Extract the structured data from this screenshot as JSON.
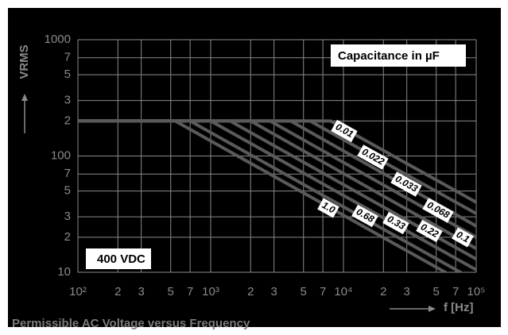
{
  "chart_data": {
    "type": "line",
    "title": "Permissible AC Voltage versus Frequency",
    "x_label": "f [Hz]",
    "y_label": "VRMS",
    "annotations": [
      "Capacitance in µF",
      "400 VDC"
    ],
    "log_x": true,
    "log_y": true,
    "grid": true,
    "xlim": [
      100,
      100000
    ],
    "ylim": [
      10,
      1000
    ],
    "xticks": [
      {
        "value": 100,
        "label": "10²"
      },
      {
        "value": 200,
        "label": "2"
      },
      {
        "value": 300,
        "label": "3"
      },
      {
        "value": 500,
        "label": "5"
      },
      {
        "value": 700,
        "label": "7"
      },
      {
        "value": 1000,
        "label": "10³"
      },
      {
        "value": 2000,
        "label": "2"
      },
      {
        "value": 3000,
        "label": "3"
      },
      {
        "value": 5000,
        "label": "5"
      },
      {
        "value": 7000,
        "label": "7"
      },
      {
        "value": 10000,
        "label": "10⁴"
      },
      {
        "value": 20000,
        "label": "2"
      },
      {
        "value": 30000,
        "label": "3"
      },
      {
        "value": 50000,
        "label": "5"
      },
      {
        "value": 70000,
        "label": "7"
      },
      {
        "value": 100000,
        "label": "10⁵"
      }
    ],
    "yticks": [
      1000,
      {
        "value": 700,
        "label": "7"
      },
      {
        "value": 500,
        "label": "5"
      },
      {
        "value": 300,
        "label": "3"
      },
      {
        "value": 200,
        "label": "2"
      },
      100,
      {
        "value": 70,
        "label": "7"
      },
      {
        "value": 50,
        "label": "5"
      },
      {
        "value": 30,
        "label": "3"
      },
      {
        "value": 20,
        "label": "2"
      },
      10
    ],
    "series": [
      {
        "name": "1.0",
        "color": "#5a5a5a",
        "x": [
          100,
          540,
          100000
        ],
        "values": [
          200,
          200,
          7.1
        ]
      },
      {
        "name": "0.68",
        "color": "#5a5a5a",
        "x": [
          100,
          700,
          100000
        ],
        "values": [
          200,
          200,
          8.4
        ]
      },
      {
        "name": "0.33",
        "color": "#5a5a5a",
        "x": [
          100,
          1000,
          100000
        ],
        "values": [
          200,
          200,
          10.5
        ]
      },
      {
        "name": "0.22",
        "color": "#5a5a5a",
        "x": [
          100,
          1400,
          100000
        ],
        "values": [
          200,
          200,
          13
        ]
      },
      {
        "name": "0.1",
        "color": "#5a5a5a",
        "x": [
          100,
          2000,
          100000
        ],
        "values": [
          200,
          200,
          16
        ]
      },
      {
        "name": "0.068",
        "color": "#5a5a5a",
        "x": [
          100,
          2800,
          100000
        ],
        "values": [
          200,
          200,
          20
        ]
      },
      {
        "name": "0.033",
        "color": "#5a5a5a",
        "x": [
          100,
          4000,
          100000
        ],
        "values": [
          200,
          200,
          25
        ]
      },
      {
        "name": "0.022",
        "color": "#5a5a5a",
        "x": [
          100,
          5600,
          100000
        ],
        "values": [
          200,
          200,
          32
        ]
      },
      {
        "name": "0.01",
        "color": "#5a5a5a",
        "x": [
          100,
          8000,
          100000
        ],
        "values": [
          200,
          200,
          40
        ]
      }
    ]
  }
}
